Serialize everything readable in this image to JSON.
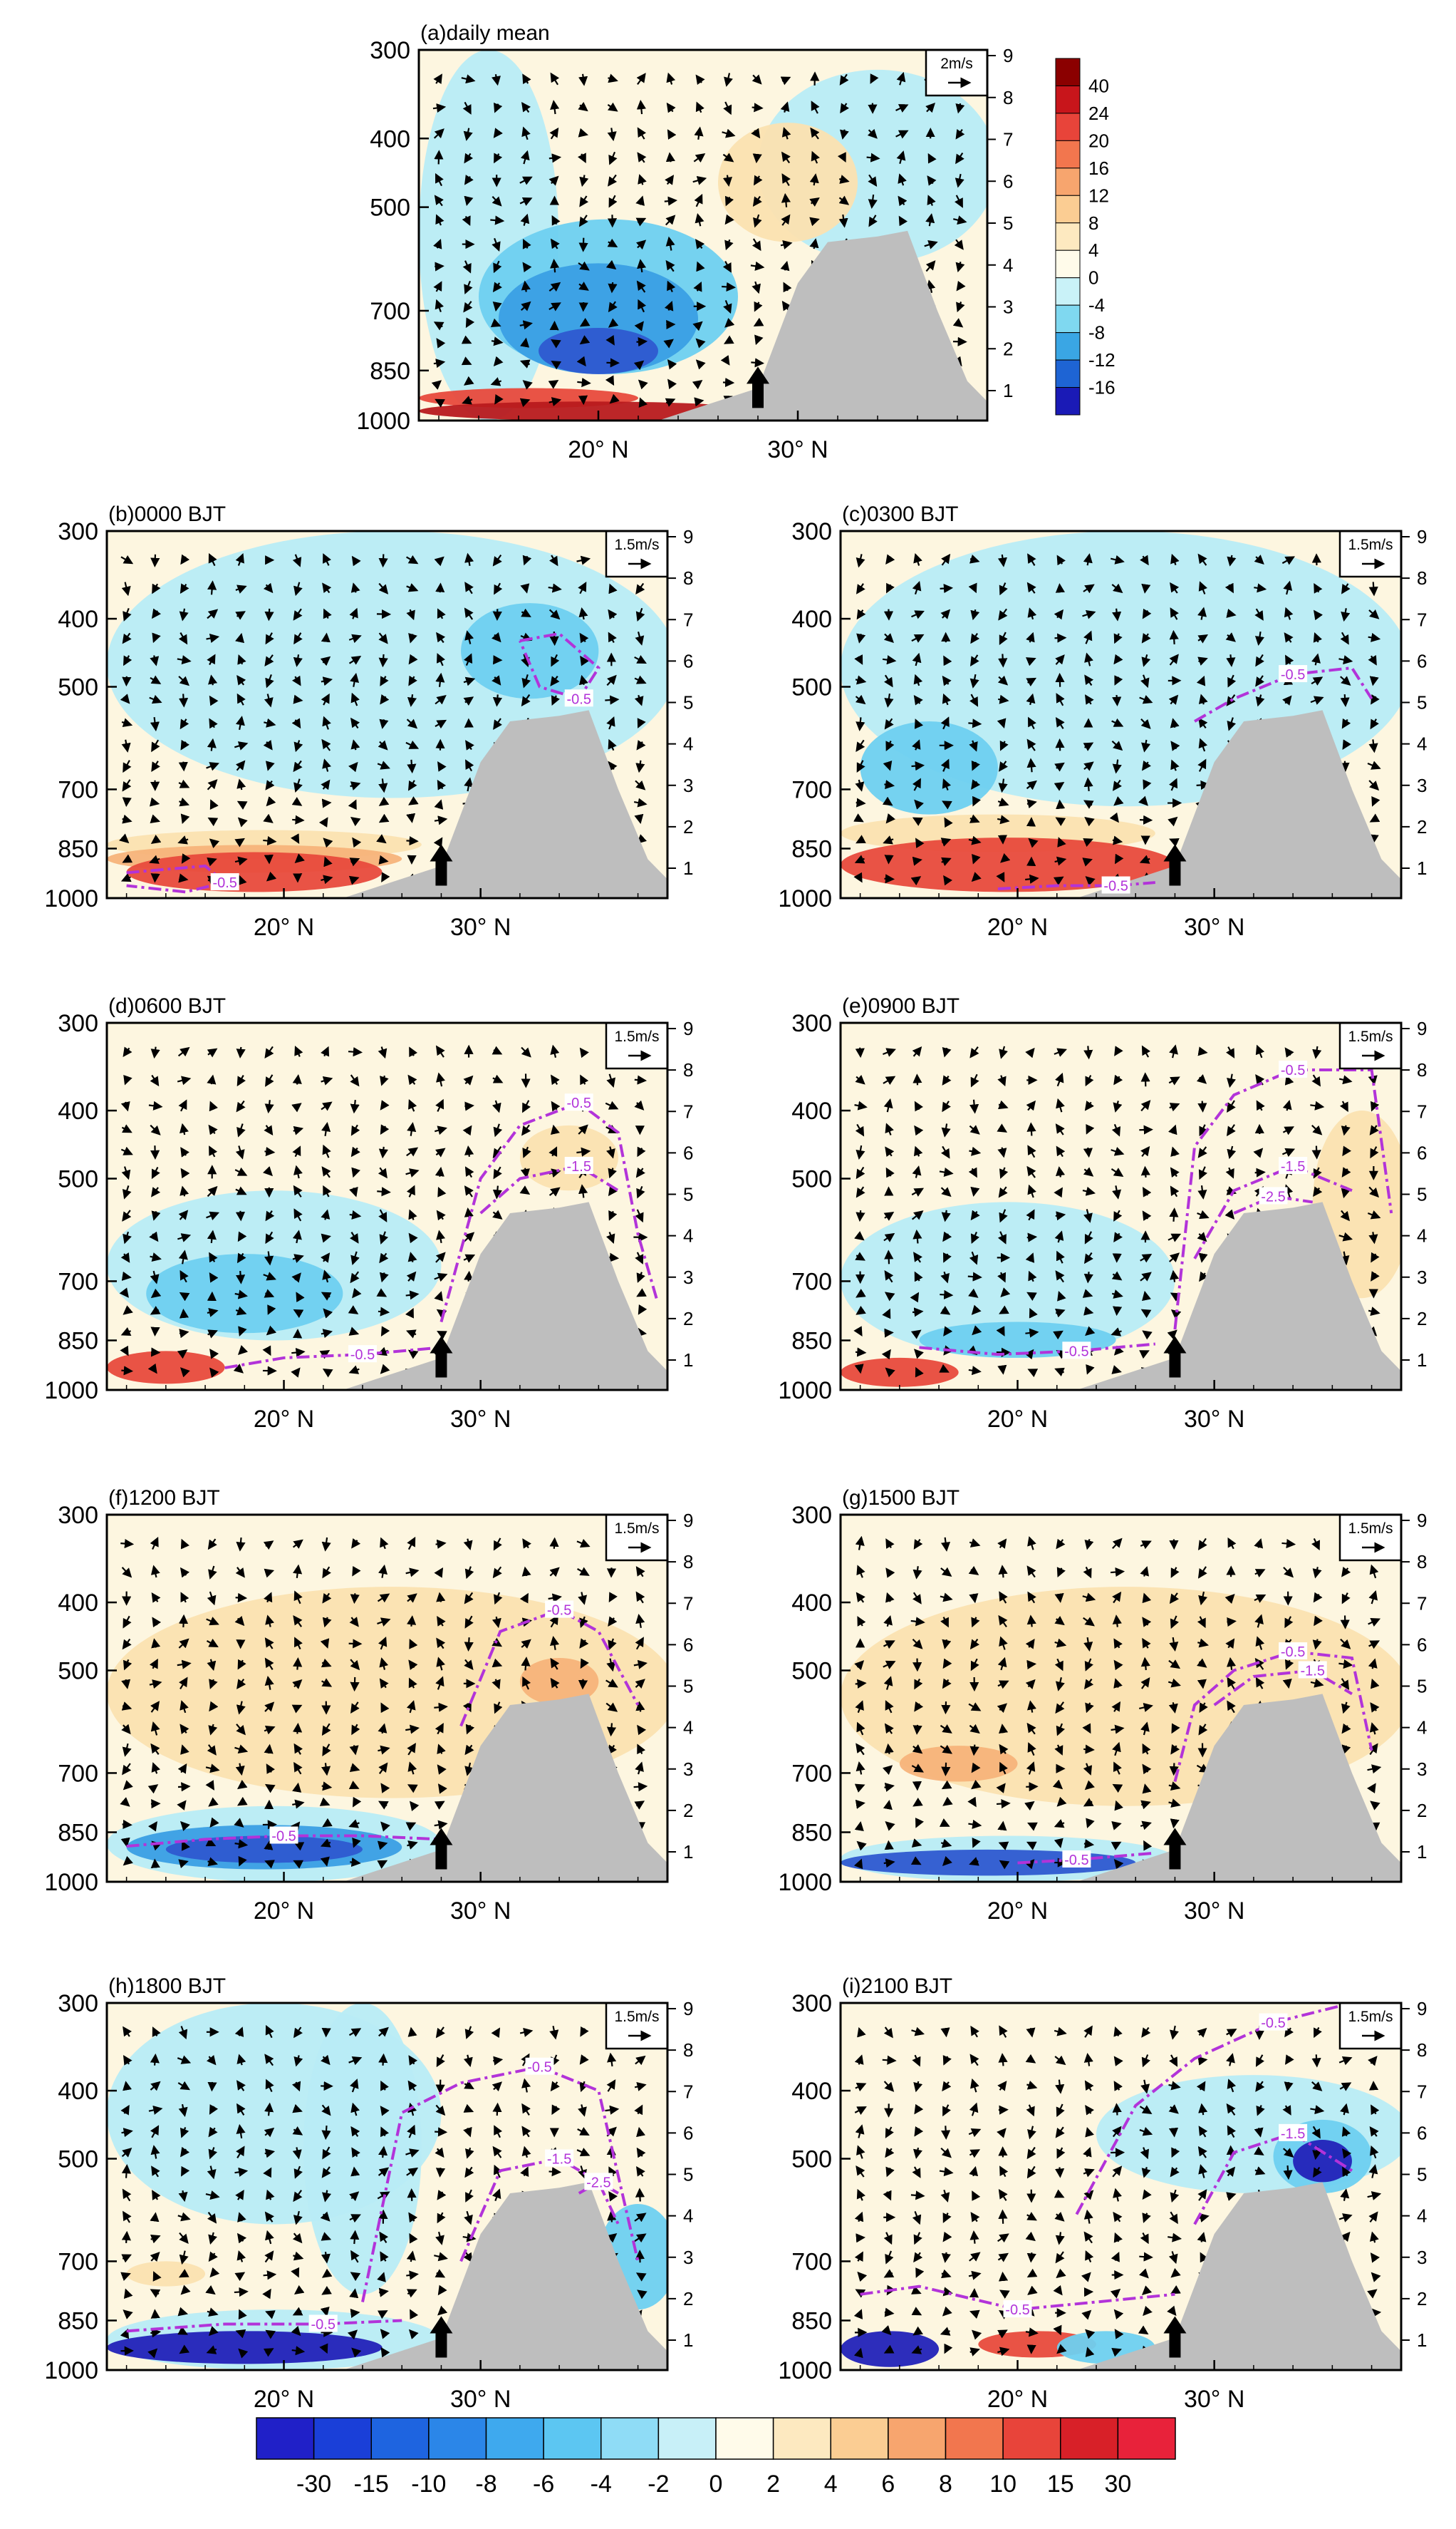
{
  "figure": {
    "colors": {
      "terrain": "#bebebe",
      "contour": "#b233d9",
      "arrow": "#000000",
      "frame": "#000000"
    }
  },
  "chart_data": [
    {
      "type": "vertical-section",
      "panel": "a",
      "title": "(a)daily mean",
      "xlabel": "",
      "ylabel": "",
      "x_ticks": [
        "20° N",
        "30° N"
      ],
      "x_tick_values": [
        20,
        30
      ],
      "xlim": [
        11,
        39.5
      ],
      "y_ticks": [
        "300",
        "400",
        "500",
        "700",
        "850",
        "1000"
      ],
      "y_tick_values": [
        300,
        400,
        500,
        700,
        850,
        1000
      ],
      "ylim": [
        1000,
        300
      ],
      "right_ticks": [
        "9",
        "8",
        "7",
        "6",
        "5",
        "4",
        "3",
        "2",
        "1"
      ],
      "reference_vector": "2m/s",
      "colorbar": {
        "orientation": "vertical",
        "labels": [
          "40",
          "24",
          "20",
          "16",
          "12",
          "8",
          "4",
          "0",
          "-4",
          "-8",
          "-12",
          "-16"
        ],
        "colors": [
          "#8b0000",
          "#c8151b",
          "#e8443a",
          "#f2764e",
          "#f7a56e",
          "#fbcd93",
          "#fde9c0",
          "#fffbea",
          "#c9f2f8",
          "#7fd8f0",
          "#3aa6e4",
          "#1e64d4",
          "#1a1ab6"
        ]
      },
      "mountain_arrow_lat": 28,
      "contours": []
    },
    {
      "type": "vertical-section",
      "panel": "b",
      "title": "(b)0000 BJT",
      "xlabel": "",
      "ylabel": "",
      "x_ticks": [
        "20° N",
        "30° N"
      ],
      "x_tick_values": [
        20,
        30
      ],
      "xlim": [
        11,
        39.5
      ],
      "y_ticks": [
        "300",
        "400",
        "500",
        "700",
        "850",
        "1000"
      ],
      "y_tick_values": [
        300,
        400,
        500,
        700,
        850,
        1000
      ],
      "ylim": [
        1000,
        300
      ],
      "right_ticks": [
        "9",
        "8",
        "7",
        "6",
        "5",
        "4",
        "3",
        "2",
        "1"
      ],
      "reference_vector": "1.5m/s",
      "mountain_arrow_lat": 28,
      "contours": [
        {
          "level": "-0.5",
          "lat": [
            32,
            34,
            36,
            35,
            33,
            32
          ],
          "p": [
            430,
            420,
            470,
            520,
            500,
            430
          ]
        },
        {
          "level": "-0.5",
          "lat": [
            12,
            16,
            17,
            15,
            12
          ],
          "p": [
            920,
            900,
            950,
            980,
            960
          ]
        }
      ]
    },
    {
      "type": "vertical-section",
      "panel": "c",
      "title": "(c)0300 BJT",
      "xlabel": "",
      "ylabel": "",
      "x_ticks": [
        "20° N",
        "30° N"
      ],
      "x_tick_values": [
        20,
        30
      ],
      "xlim": [
        11,
        39.5
      ],
      "y_ticks": [
        "300",
        "400",
        "500",
        "700",
        "850",
        "1000"
      ],
      "y_tick_values": [
        300,
        400,
        500,
        700,
        850,
        1000
      ],
      "ylim": [
        1000,
        300
      ],
      "right_ticks": [
        "9",
        "8",
        "7",
        "6",
        "5",
        "4",
        "3",
        "2",
        "1"
      ],
      "reference_vector": "1.5m/s",
      "mountain_arrow_lat": 28,
      "contours": [
        {
          "level": "-0.5",
          "lat": [
            29,
            31,
            34,
            37,
            38
          ],
          "p": [
            560,
            520,
            480,
            470,
            520
          ]
        },
        {
          "level": "-0.5",
          "lat": [
            19,
            22,
            25,
            27
          ],
          "p": [
            970,
            960,
            960,
            950
          ]
        }
      ]
    },
    {
      "type": "vertical-section",
      "panel": "d",
      "title": "(d)0600 BJT",
      "xlabel": "",
      "ylabel": "",
      "x_ticks": [
        "20° N",
        "30° N"
      ],
      "x_tick_values": [
        20,
        30
      ],
      "xlim": [
        11,
        39.5
      ],
      "y_ticks": [
        "300",
        "400",
        "500",
        "700",
        "850",
        "1000"
      ],
      "y_tick_values": [
        300,
        400,
        500,
        700,
        850,
        1000
      ],
      "ylim": [
        1000,
        300
      ],
      "right_ticks": [
        "9",
        "8",
        "7",
        "6",
        "5",
        "4",
        "3",
        "2",
        "1"
      ],
      "reference_vector": "1.5m/s",
      "mountain_arrow_lat": 28,
      "contours": [
        {
          "level": "-0.5",
          "lat": [
            28,
            30,
            32,
            35,
            37,
            38,
            39
          ],
          "p": [
            800,
            500,
            420,
            390,
            430,
            600,
            750
          ]
        },
        {
          "level": "-1.5",
          "lat": [
            30,
            32,
            35,
            37
          ],
          "p": [
            560,
            500,
            480,
            520
          ]
        },
        {
          "level": "-0.5",
          "lat": [
            17,
            20,
            24,
            28
          ],
          "p": [
            930,
            900,
            890,
            870
          ]
        }
      ]
    },
    {
      "type": "vertical-section",
      "panel": "e",
      "title": "(e)0900 BJT",
      "xlabel": "",
      "ylabel": "",
      "x_ticks": [
        "20° N",
        "30° N"
      ],
      "x_tick_values": [
        20,
        30
      ],
      "xlim": [
        11,
        39.5
      ],
      "y_ticks": [
        "300",
        "400",
        "500",
        "700",
        "850",
        "1000"
      ],
      "y_tick_values": [
        300,
        400,
        500,
        700,
        850,
        1000
      ],
      "ylim": [
        1000,
        300
      ],
      "right_ticks": [
        "9",
        "8",
        "7",
        "6",
        "5",
        "4",
        "3",
        "2",
        "1"
      ],
      "reference_vector": "1.5m/s",
      "mountain_arrow_lat": 28,
      "contours": [
        {
          "level": "-0.5",
          "lat": [
            28,
            29,
            31,
            34,
            38,
            39
          ],
          "p": [
            820,
            450,
            380,
            350,
            350,
            560
          ]
        },
        {
          "level": "-1.5",
          "lat": [
            29,
            31,
            34,
            37
          ],
          "p": [
            650,
            520,
            480,
            520
          ]
        },
        {
          "level": "-2.5",
          "lat": [
            31,
            33,
            35
          ],
          "p": [
            560,
            530,
            540
          ]
        },
        {
          "level": "-0.5",
          "lat": [
            15,
            19,
            23,
            27
          ],
          "p": [
            870,
            890,
            880,
            860
          ]
        }
      ]
    },
    {
      "type": "vertical-section",
      "panel": "f",
      "title": "(f)1200 BJT",
      "xlabel": "",
      "ylabel": "",
      "x_ticks": [
        "20° N",
        "30° N"
      ],
      "x_tick_values": [
        20,
        30
      ],
      "xlim": [
        11,
        39.5
      ],
      "y_ticks": [
        "300",
        "400",
        "500",
        "700",
        "850",
        "1000"
      ],
      "y_tick_values": [
        300,
        400,
        500,
        700,
        850,
        1000
      ],
      "ylim": [
        1000,
        300
      ],
      "right_ticks": [
        "9",
        "8",
        "7",
        "6",
        "5",
        "4",
        "3",
        "2",
        "1"
      ],
      "reference_vector": "1.5m/s",
      "mountain_arrow_lat": 28,
      "contours": [
        {
          "level": "-0.5",
          "lat": [
            29,
            31,
            34,
            36,
            38
          ],
          "p": [
            600,
            440,
            410,
            440,
            560
          ]
        },
        {
          "level": "-0.5",
          "lat": [
            12,
            16,
            20,
            24,
            28
          ],
          "p": [
            890,
            870,
            860,
            860,
            870
          ]
        }
      ]
    },
    {
      "type": "vertical-section",
      "panel": "g",
      "title": "(g)1500 BJT",
      "xlabel": "",
      "ylabel": "",
      "x_ticks": [
        "20° N",
        "30° N"
      ],
      "x_tick_values": [
        20,
        30
      ],
      "xlim": [
        11,
        39.5
      ],
      "y_ticks": [
        "300",
        "400",
        "500",
        "700",
        "850",
        "1000"
      ],
      "y_tick_values": [
        300,
        400,
        500,
        700,
        850,
        1000
      ],
      "ylim": [
        1000,
        300
      ],
      "right_ticks": [
        "9",
        "8",
        "7",
        "6",
        "5",
        "4",
        "3",
        "2",
        "1"
      ],
      "reference_vector": "1.5m/s",
      "mountain_arrow_lat": 28,
      "contours": [
        {
          "level": "-0.5",
          "lat": [
            28,
            29,
            31,
            34,
            37,
            38
          ],
          "p": [
            720,
            560,
            500,
            470,
            480,
            650
          ]
        },
        {
          "level": "-1.5",
          "lat": [
            30,
            32,
            35,
            37
          ],
          "p": [
            560,
            510,
            500,
            540
          ]
        },
        {
          "level": "-0.5",
          "lat": [
            20,
            23,
            27
          ],
          "p": [
            940,
            930,
            910
          ]
        }
      ]
    },
    {
      "type": "vertical-section",
      "panel": "h",
      "title": "(h)1800 BJT",
      "xlabel": "",
      "ylabel": "",
      "x_ticks": [
        "20° N",
        "30° N"
      ],
      "x_tick_values": [
        20,
        30
      ],
      "xlim": [
        11,
        39.5
      ],
      "y_ticks": [
        "300",
        "400",
        "500",
        "700",
        "850",
        "1000"
      ],
      "y_tick_values": [
        300,
        400,
        500,
        700,
        850,
        1000
      ],
      "ylim": [
        1000,
        300
      ],
      "right_ticks": [
        "9",
        "8",
        "7",
        "6",
        "5",
        "4",
        "3",
        "2",
        "1"
      ],
      "reference_vector": "1.5m/s",
      "mountain_arrow_lat": 28,
      "contours": [
        {
          "level": "-0.5",
          "lat": [
            24,
            26,
            29,
            33,
            36,
            38
          ],
          "p": [
            800,
            430,
            390,
            370,
            400,
            700
          ]
        },
        {
          "level": "-1.5",
          "lat": [
            29,
            31,
            34,
            37
          ],
          "p": [
            700,
            520,
            500,
            560
          ]
        },
        {
          "level": "-2.5",
          "lat": [
            35,
            36,
            37
          ],
          "p": [
            560,
            540,
            620
          ]
        },
        {
          "level": "-0.5",
          "lat": [
            12,
            17,
            22,
            26
          ],
          "p": [
            880,
            860,
            860,
            850
          ]
        }
      ]
    },
    {
      "type": "vertical-section",
      "panel": "i",
      "title": "(i)2100 BJT",
      "xlabel": "",
      "ylabel": "",
      "x_ticks": [
        "20° N",
        "30° N"
      ],
      "x_tick_values": [
        20,
        30
      ],
      "xlim": [
        11,
        39.5
      ],
      "y_ticks": [
        "300",
        "400",
        "500",
        "700",
        "850",
        "1000"
      ],
      "y_tick_values": [
        300,
        400,
        500,
        700,
        850,
        1000
      ],
      "ylim": [
        1000,
        300
      ],
      "right_ticks": [
        "9",
        "8",
        "7",
        "6",
        "5",
        "4",
        "3",
        "2",
        "1"
      ],
      "reference_vector": "1.5m/s",
      "mountain_arrow_lat": 28,
      "contours": [
        {
          "level": "-0.5",
          "lat": [
            23,
            26,
            29,
            33,
            37,
            39
          ],
          "p": [
            600,
            420,
            360,
            320,
            300,
            300
          ]
        },
        {
          "level": "-1.5",
          "lat": [
            29,
            31,
            34,
            37
          ],
          "p": [
            620,
            490,
            460,
            520
          ]
        },
        {
          "level": "-0.5",
          "lat": [
            12,
            15,
            20,
            24,
            28
          ],
          "p": [
            780,
            760,
            820,
            800,
            780
          ]
        }
      ]
    },
    {
      "type": "colorbar",
      "panel": "shared",
      "orientation": "horizontal",
      "labels": [
        "-30",
        "-15",
        "-10",
        "-8",
        "-6",
        "-4",
        "-2",
        "0",
        "2",
        "4",
        "6",
        "8",
        "10",
        "15",
        "30"
      ],
      "colors": [
        "#2020c8",
        "#1a3fd8",
        "#1e64e0",
        "#2b86e8",
        "#3ea9ee",
        "#5cc6f2",
        "#8fdcf6",
        "#c8f0f8",
        "#fffbea",
        "#fde9c0",
        "#fbcd93",
        "#f7a56e",
        "#f2764e",
        "#e8443a",
        "#d82028",
        "#e8223a"
      ]
    }
  ]
}
